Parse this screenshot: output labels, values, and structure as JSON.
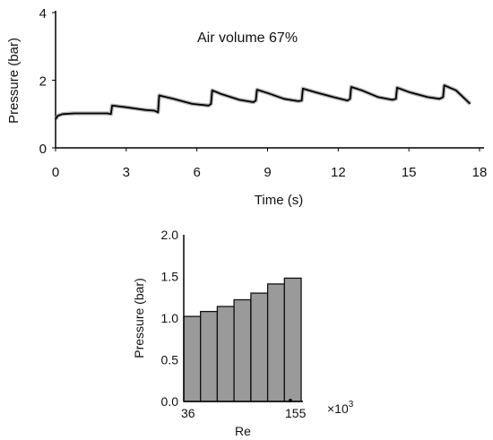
{
  "chart_data": [
    {
      "type": "line",
      "title": "",
      "annotation": "Air volume 67%",
      "xlabel": "Time (s)",
      "ylabel": "Pressure (bar)",
      "xlim": [
        0,
        18
      ],
      "ylim": [
        0,
        4
      ],
      "xticks": [
        "0",
        "3",
        "6",
        "9",
        "12",
        "15",
        "18"
      ],
      "yticks": [
        "0",
        "2",
        "4"
      ],
      "grid": false,
      "series": [
        {
          "x": [
            0,
            0.1,
            0.3,
            0.8,
            1.5,
            2.2,
            2.35,
            2.4,
            3.0,
            3.8,
            4.2,
            4.35,
            4.4,
            5.0,
            5.8,
            6.5,
            6.6,
            6.65,
            7.0,
            7.8,
            8.4,
            8.5,
            8.55,
            9.0,
            9.7,
            10.3,
            10.45,
            10.5,
            11.0,
            11.8,
            12.4,
            12.5,
            12.55,
            13.0,
            13.7,
            14.3,
            14.45,
            14.5,
            15.0,
            15.8,
            16.3,
            16.45,
            16.5,
            17.0,
            17.6
          ],
          "values": [
            0.85,
            0.95,
            1.0,
            1.02,
            1.02,
            1.02,
            1.0,
            1.25,
            1.2,
            1.12,
            1.1,
            1.05,
            1.55,
            1.45,
            1.3,
            1.25,
            1.3,
            1.7,
            1.6,
            1.42,
            1.35,
            1.4,
            1.72,
            1.62,
            1.45,
            1.38,
            1.4,
            1.75,
            1.65,
            1.5,
            1.4,
            1.45,
            1.8,
            1.7,
            1.5,
            1.42,
            1.45,
            1.78,
            1.65,
            1.5,
            1.45,
            1.5,
            1.85,
            1.7,
            1.3
          ]
        }
      ]
    },
    {
      "type": "bar",
      "title": "",
      "xlabel": "Re",
      "ylabel": "Pressure (bar)",
      "x_multiplier": "×10",
      "x_multiplier_exp": "3",
      "x_range_labels": [
        "36",
        "155"
      ],
      "ylim": [
        0,
        2.0
      ],
      "yticks": [
        "0.0",
        "0.5",
        "1.0",
        "1.5",
        "2.0"
      ],
      "grid": false,
      "values": [
        1.02,
        1.08,
        1.14,
        1.22,
        1.3,
        1.41,
        1.48
      ]
    }
  ]
}
